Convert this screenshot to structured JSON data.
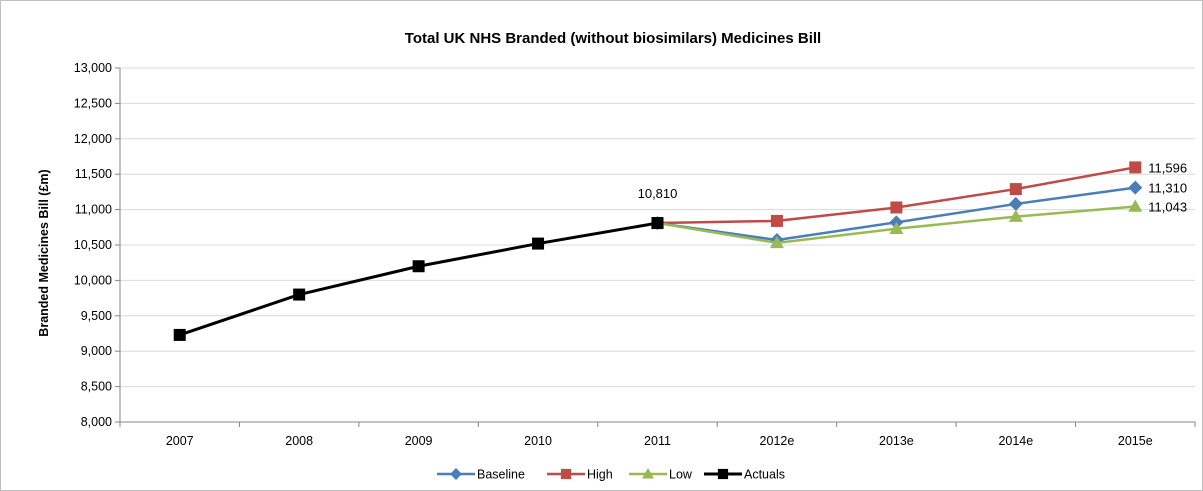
{
  "chart_data": {
    "type": "line",
    "title": "Total UK NHS Branded (without biosimilars) Medicines Bill",
    "ylabel": "Branded Medicines Bill (£m)",
    "xlabel": "",
    "categories": [
      "2007",
      "2008",
      "2009",
      "2010",
      "2011",
      "2012e",
      "2013e",
      "2014e",
      "2015e"
    ],
    "ylim": [
      8000,
      13000
    ],
    "yticks": [
      8000,
      8500,
      9000,
      9500,
      10000,
      10500,
      11000,
      11500,
      12000,
      12500,
      13000
    ],
    "ytick_labels": [
      "8,000",
      "8,500",
      "9,000",
      "9,500",
      "10,000",
      "10,500",
      "11,000",
      "11,500",
      "12,000",
      "12,500",
      "13,000"
    ],
    "grid": true,
    "legend": "bottom",
    "series": [
      {
        "name": "Baseline",
        "color": "#4a7ebb",
        "marker": "diamond",
        "values": [
          null,
          null,
          null,
          null,
          10810,
          10570,
          10820,
          11080,
          11310
        ]
      },
      {
        "name": "High",
        "color": "#be4b48",
        "marker": "square",
        "values": [
          null,
          null,
          null,
          null,
          10810,
          10840,
          11030,
          11290,
          11596
        ]
      },
      {
        "name": "Low",
        "color": "#98b954",
        "marker": "triangle",
        "values": [
          null,
          null,
          null,
          null,
          10810,
          10530,
          10730,
          10900,
          11043
        ]
      },
      {
        "name": "Actuals",
        "color": "#000000",
        "marker": "square",
        "values": [
          9230,
          9800,
          10200,
          10520,
          10810,
          null,
          null,
          null,
          null
        ]
      }
    ],
    "data_labels": [
      {
        "text": "10,810",
        "category": "2011",
        "value": 10810,
        "series": "Actuals"
      },
      {
        "text": "11,596",
        "category": "2015e",
        "value": 11596,
        "series": "High"
      },
      {
        "text": "11,310",
        "category": "2015e",
        "value": 11310,
        "series": "Baseline"
      },
      {
        "text": "11,043",
        "category": "2015e",
        "value": 11043,
        "series": "Low"
      }
    ]
  }
}
